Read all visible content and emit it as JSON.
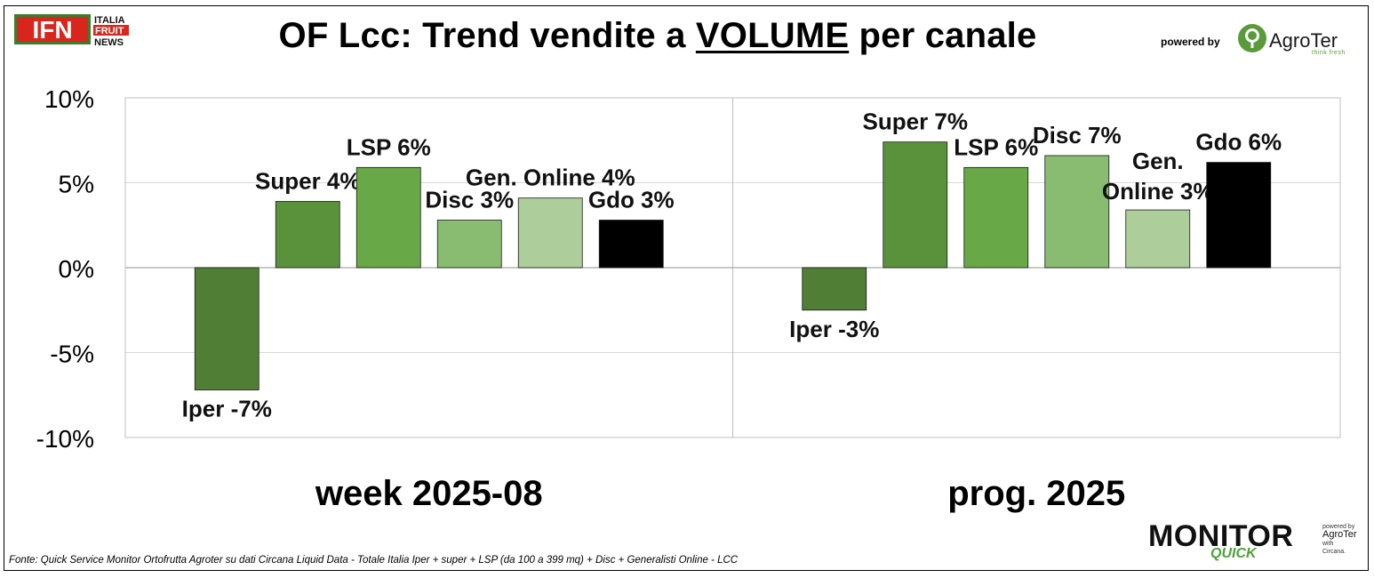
{
  "header": {
    "title_prefix": "OF Lcc: Trend vendite a ",
    "title_emph": "VOLUME",
    "title_suffix": " per canale",
    "powered_by": "powered by",
    "agroter_name": "AgroTer",
    "agroter_tagline": "think fresh"
  },
  "logo_ifn": {
    "mark": "IFN",
    "line1": "ITALIA",
    "line2": "FRUIT",
    "line3": "NEWS",
    "red": "#d9261c",
    "green": "#3a7d2c"
  },
  "footer": {
    "source": "Fonte: Quick Service Monitor Ortofrutta Agroter su dati Circana Liquid Data - Totale Italia Iper + super + LSP (da 100 a 399 mq) + Disc + Generalisti Online - LCC",
    "monitor": "MONITOR",
    "quick": "QUICK",
    "side_powered": "powered by",
    "side_agroter": "AgroTer",
    "side_with": "with",
    "side_circana": "Circana."
  },
  "chart_data": {
    "type": "bar",
    "ylim": [
      -10,
      10
    ],
    "yticks": [
      10,
      5,
      0,
      -5,
      -10
    ],
    "ytick_labels": [
      "10%",
      "5%",
      "0%",
      "-5%",
      "-10%"
    ],
    "grid": true,
    "groups": [
      {
        "name": "week 2025-08",
        "bars": [
          {
            "label": "Iper -7%",
            "value": -7.2,
            "color": "#507e35"
          },
          {
            "label": "Super 4%",
            "value": 3.9,
            "color": "#5a923c"
          },
          {
            "label": "LSP 6%",
            "value": 5.9,
            "color": "#69a846"
          },
          {
            "label": "Disc 3%",
            "value": 2.8,
            "color": "#89bb70"
          },
          {
            "label": "Gen. Online 4%",
            "value": 4.1,
            "color": "#adcd9b"
          },
          {
            "label": "Gdo 3%",
            "value": 2.8,
            "color": "#000000"
          }
        ]
      },
      {
        "name": "prog. 2025",
        "bars": [
          {
            "label": "Iper -3%",
            "value": -2.5,
            "color": "#507e35"
          },
          {
            "label": "Super 7%",
            "value": 7.4,
            "color": "#5a923c"
          },
          {
            "label": "LSP 6%",
            "value": 5.9,
            "color": "#69a846"
          },
          {
            "label": "Disc 7%",
            "value": 6.6,
            "color": "#89bb70"
          },
          {
            "label": "Gen.\nOnline 3%",
            "value": 3.4,
            "color": "#adcd9b"
          },
          {
            "label": "Gdo 6%",
            "value": 6.2,
            "color": "#000000"
          }
        ]
      }
    ]
  }
}
